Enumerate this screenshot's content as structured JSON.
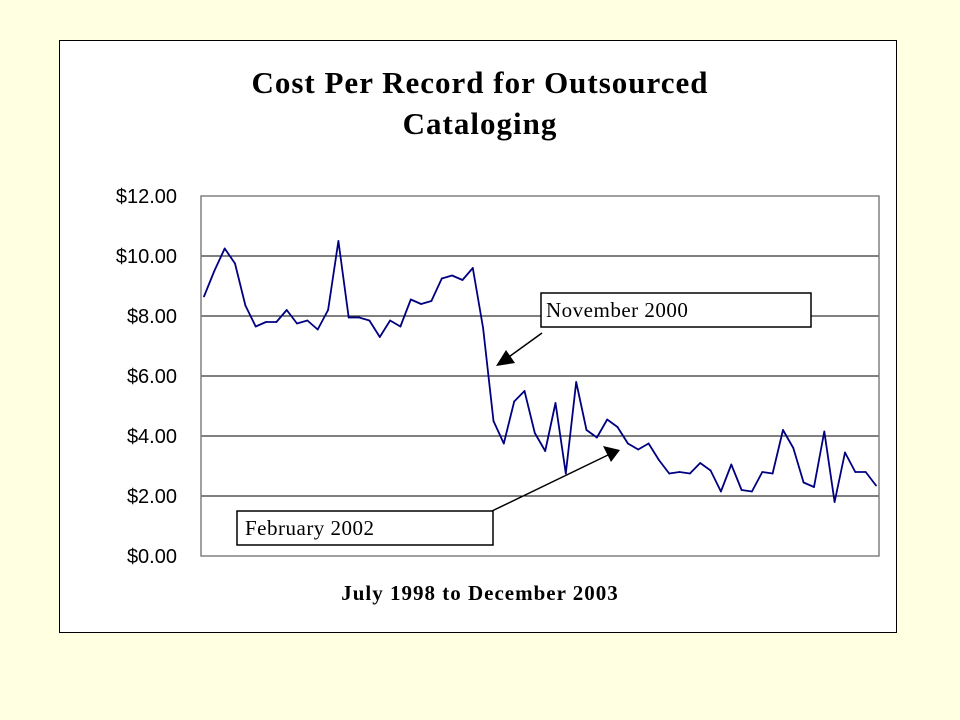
{
  "colors": {
    "page_background": "#ffffe1",
    "chart_background": "#ffffff",
    "series_line": "#000080",
    "gridline": "#000000"
  },
  "chart_data": {
    "type": "line",
    "title_lines": [
      "Cost Per Record for Outsourced",
      "Cataloging"
    ],
    "xlabel": "July 1998 to December 2003",
    "ylabel": "",
    "ylim": [
      0,
      12
    ],
    "yticks": [
      0,
      2,
      4,
      6,
      8,
      10,
      12
    ],
    "ytick_labels": [
      "$0.00",
      "$2.00",
      "$4.00",
      "$6.00",
      "$8.00",
      "$10.00",
      "$12.00"
    ],
    "grid": true,
    "legend": "none",
    "x_range": [
      "1998-07",
      "2003-12"
    ],
    "x": [
      "1998-07",
      "1998-08",
      "1998-09",
      "1998-10",
      "1998-11",
      "1998-12",
      "1999-01",
      "1999-02",
      "1999-03",
      "1999-04",
      "1999-05",
      "1999-06",
      "1999-07",
      "1999-08",
      "1999-09",
      "1999-10",
      "1999-11",
      "1999-12",
      "2000-01",
      "2000-02",
      "2000-03",
      "2000-04",
      "2000-05",
      "2000-06",
      "2000-07",
      "2000-08",
      "2000-09",
      "2000-10",
      "2000-11",
      "2000-12",
      "2001-01",
      "2001-02",
      "2001-03",
      "2001-04",
      "2001-05",
      "2001-06",
      "2001-07",
      "2001-08",
      "2001-09",
      "2001-10",
      "2001-11",
      "2001-12",
      "2002-01",
      "2002-02",
      "2002-03",
      "2002-04",
      "2002-05",
      "2002-06",
      "2002-07",
      "2002-08",
      "2002-09",
      "2002-10",
      "2002-11",
      "2002-12",
      "2003-01",
      "2003-02",
      "2003-03",
      "2003-04",
      "2003-05",
      "2003-06",
      "2003-07",
      "2003-08",
      "2003-09",
      "2003-10",
      "2003-11",
      "2003-12"
    ],
    "series": [
      {
        "values": [
          8.65,
          9.5,
          10.25,
          9.75,
          8.35,
          7.65,
          7.8,
          7.8,
          8.2,
          7.75,
          7.85,
          7.55,
          8.2,
          10.5,
          7.95,
          7.95,
          7.85,
          7.3,
          7.85,
          7.65,
          8.55,
          8.4,
          8.5,
          9.25,
          9.35,
          9.2,
          9.6,
          7.6,
          4.5,
          3.75,
          5.15,
          5.5,
          4.1,
          3.5,
          5.1,
          2.75,
          5.8,
          4.2,
          3.95,
          4.55,
          4.3,
          3.75,
          3.55,
          3.75,
          3.2,
          2.75,
          2.8,
          2.75,
          3.1,
          2.85,
          2.15,
          3.05,
          2.2,
          2.15,
          2.8,
          2.75,
          4.2,
          3.6,
          2.45,
          2.3,
          4.15,
          1.8,
          3.45,
          2.8,
          2.8,
          2.35
        ]
      }
    ],
    "annotations": [
      {
        "text": "November 2000",
        "points_to": "2000-11"
      },
      {
        "text": "February 2002",
        "points_to": "2002-02"
      }
    ]
  }
}
